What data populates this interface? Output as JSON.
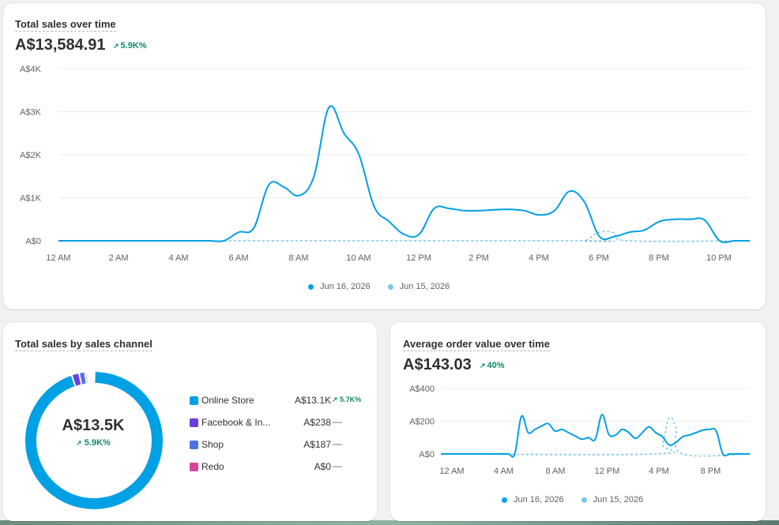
{
  "colors": {
    "primary_series": "#00a0e4",
    "comparison_series": "#7cc6e8",
    "positive": "#0f8a5f",
    "online_store": "#00a0e4",
    "facebook": "#6c3ce0",
    "shop": "#4b74e0",
    "redo": "#d9449b"
  },
  "total_sales": {
    "title": "Total sales over time",
    "value": "A$13,584.91",
    "delta": "5.9K%",
    "delta_icon": "arrow-up-right-icon"
  },
  "sales_channel": {
    "title": "Total sales by sales channel",
    "center_value": "A$13.5K",
    "center_delta": "5.9K%",
    "rows": [
      {
        "name": "Online Store",
        "value": "A$13.1K",
        "delta": "5.7K%",
        "dash": ""
      },
      {
        "name": "Facebook & In...",
        "value": "A$238",
        "delta": "",
        "dash": "—"
      },
      {
        "name": "Shop",
        "value": "A$187",
        "delta": "",
        "dash": "—"
      },
      {
        "name": "Redo",
        "value": "A$0",
        "delta": "",
        "dash": "—"
      }
    ]
  },
  "aov": {
    "title": "Average order value over time",
    "value": "A$143.03",
    "delta": "40%"
  },
  "chart_data": [
    {
      "type": "line",
      "title": "Total sales over time",
      "x_tick_labels": [
        "12 AM",
        "2 AM",
        "4 AM",
        "6 AM",
        "8 AM",
        "10 AM",
        "12 PM",
        "2 PM",
        "4 PM",
        "6 PM",
        "8 PM",
        "10 PM"
      ],
      "y_tick_labels": [
        "A$0",
        "A$1K",
        "A$2K",
        "A$3K",
        "A$4K"
      ],
      "ylim": [
        0,
        4000
      ],
      "xlim": [
        0,
        23
      ],
      "series": [
        {
          "name": "Jun 16, 2026",
          "style": "solid",
          "x": [
            0,
            1,
            2,
            3,
            4,
            5,
            5.5,
            6,
            6.5,
            7,
            7.5,
            8,
            8.5,
            9,
            9.5,
            10,
            10.5,
            11,
            11.5,
            12,
            12.5,
            13,
            13.5,
            14,
            14.5,
            15,
            15.5,
            16,
            16.5,
            17,
            17.5,
            18,
            18.5,
            19,
            19.5,
            20,
            20.5,
            21,
            21.5,
            22,
            22.5,
            23
          ],
          "y": [
            0,
            0,
            0,
            0,
            0,
            0,
            0,
            200,
            300,
            1300,
            1250,
            1050,
            1500,
            3100,
            2500,
            2000,
            800,
            450,
            150,
            150,
            750,
            750,
            700,
            700,
            720,
            730,
            700,
            600,
            700,
            1150,
            900,
            100,
            100,
            200,
            250,
            450,
            500,
            500,
            480,
            0,
            0,
            0
          ]
        },
        {
          "name": "Jun 15, 2026",
          "style": "dashed",
          "x": [
            0,
            17,
            17.5,
            18,
            18.5,
            19,
            23
          ],
          "y": [
            0,
            0,
            0,
            200,
            180,
            0,
            0
          ]
        }
      ],
      "legend": [
        "Jun 16, 2026",
        "Jun 15, 2026"
      ],
      "legend_position": "bottom",
      "grid": true
    },
    {
      "type": "pie",
      "title": "Total sales by sales channel",
      "categories": [
        "Online Store",
        "Facebook & In...",
        "Shop",
        "Redo"
      ],
      "values": [
        13100,
        238,
        187,
        0
      ]
    },
    {
      "type": "line",
      "title": "Average order value over time",
      "x_tick_labels": [
        "12 AM",
        "4 AM",
        "8 AM",
        "12 PM",
        "4 PM",
        "8 PM"
      ],
      "y_tick_labels": [
        "A$0",
        "A$200",
        "A$400"
      ],
      "ylim": [
        0,
        400
      ],
      "xlim": [
        0,
        23
      ],
      "series": [
        {
          "name": "Jun 16, 2026",
          "style": "solid",
          "x": [
            0,
            1,
            2,
            3,
            4,
            5,
            5.5,
            6,
            6.5,
            7,
            7.5,
            8,
            8.5,
            9,
            9.5,
            10,
            10.5,
            11,
            11.5,
            12,
            12.5,
            13,
            13.5,
            14,
            14.5,
            15,
            15.5,
            16,
            16.5,
            17,
            17.5,
            18,
            18.5,
            19,
            19.5,
            20,
            20.5,
            21,
            21.5,
            22,
            22.5,
            23
          ],
          "y": [
            0,
            0,
            0,
            0,
            0,
            0,
            0,
            230,
            130,
            150,
            170,
            185,
            140,
            150,
            130,
            110,
            90,
            100,
            90,
            240,
            120,
            115,
            150,
            130,
            95,
            130,
            165,
            130,
            105,
            55,
            70,
            105,
            115,
            130,
            145,
            150,
            140,
            0,
            0,
            0,
            0,
            0
          ]
        },
        {
          "name": "Jun 15, 2026",
          "style": "dashed",
          "x": [
            0,
            16,
            16.5,
            17,
            17.5,
            18,
            23
          ],
          "y": [
            0,
            0,
            60,
            220,
            160,
            0,
            0
          ]
        }
      ],
      "legend": [
        "Jun 16, 2026",
        "Jun 15, 2026"
      ],
      "legend_position": "bottom",
      "grid": true
    }
  ]
}
